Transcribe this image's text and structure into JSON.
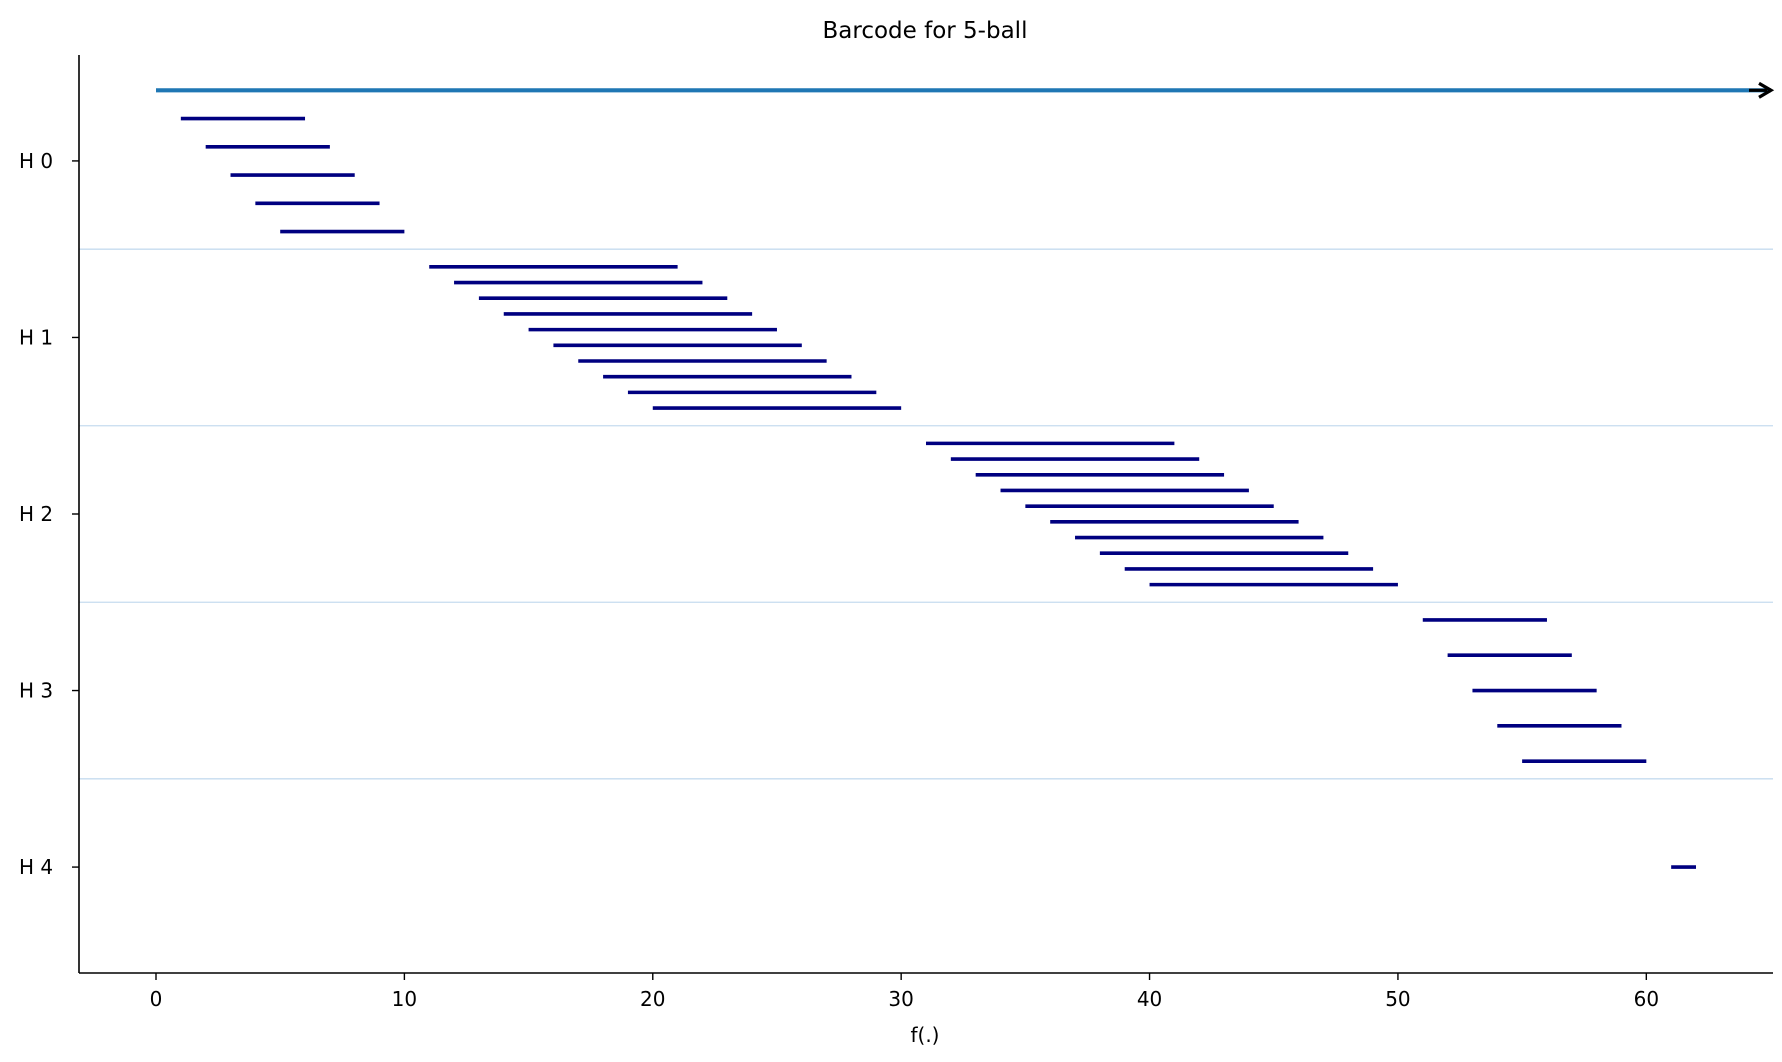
{
  "chart_data": {
    "type": "barcode",
    "title": "Barcode for 5-ball",
    "xlabel": "f(.)",
    "ylabel": "",
    "xlim": [
      -3.1,
      65.1
    ],
    "xticks": [
      0,
      10,
      20,
      30,
      40,
      50,
      60
    ],
    "ylim": [
      -4.6,
      0.6
    ],
    "grid": false,
    "legend": "none",
    "groups": [
      {
        "label": "H 0",
        "color": "#000080",
        "intervals": [
          {
            "birth": 0,
            "death": "infinity",
            "color": "#1f77b4"
          },
          {
            "birth": 1,
            "death": 6
          },
          {
            "birth": 2,
            "death": 7
          },
          {
            "birth": 3,
            "death": 8
          },
          {
            "birth": 4,
            "death": 9
          },
          {
            "birth": 5,
            "death": 10
          }
        ]
      },
      {
        "label": "H 1",
        "color": "#000080",
        "intervals": [
          {
            "birth": 11,
            "death": 21
          },
          {
            "birth": 12,
            "death": 22
          },
          {
            "birth": 13,
            "death": 23
          },
          {
            "birth": 14,
            "death": 24
          },
          {
            "birth": 15,
            "death": 25
          },
          {
            "birth": 16,
            "death": 26
          },
          {
            "birth": 17,
            "death": 27
          },
          {
            "birth": 18,
            "death": 28
          },
          {
            "birth": 19,
            "death": 29
          },
          {
            "birth": 20,
            "death": 30
          }
        ]
      },
      {
        "label": "H 2",
        "color": "#000080",
        "intervals": [
          {
            "birth": 31,
            "death": 41
          },
          {
            "birth": 32,
            "death": 42
          },
          {
            "birth": 33,
            "death": 43
          },
          {
            "birth": 34,
            "death": 44
          },
          {
            "birth": 35,
            "death": 45
          },
          {
            "birth": 36,
            "death": 46
          },
          {
            "birth": 37,
            "death": 47
          },
          {
            "birth": 38,
            "death": 48
          },
          {
            "birth": 39,
            "death": 49
          },
          {
            "birth": 40,
            "death": 50
          }
        ]
      },
      {
        "label": "H 3",
        "color": "#000080",
        "intervals": [
          {
            "birth": 51,
            "death": 56
          },
          {
            "birth": 52,
            "death": 57
          },
          {
            "birth": 53,
            "death": 58
          },
          {
            "birth": 54,
            "death": 59
          },
          {
            "birth": 55,
            "death": 60
          }
        ]
      },
      {
        "label": "H 4",
        "color": "#000080",
        "intervals": [
          {
            "birth": 61,
            "death": 62
          }
        ]
      }
    ],
    "separator_color": "#c6dbef",
    "axis_color": "#000000"
  }
}
